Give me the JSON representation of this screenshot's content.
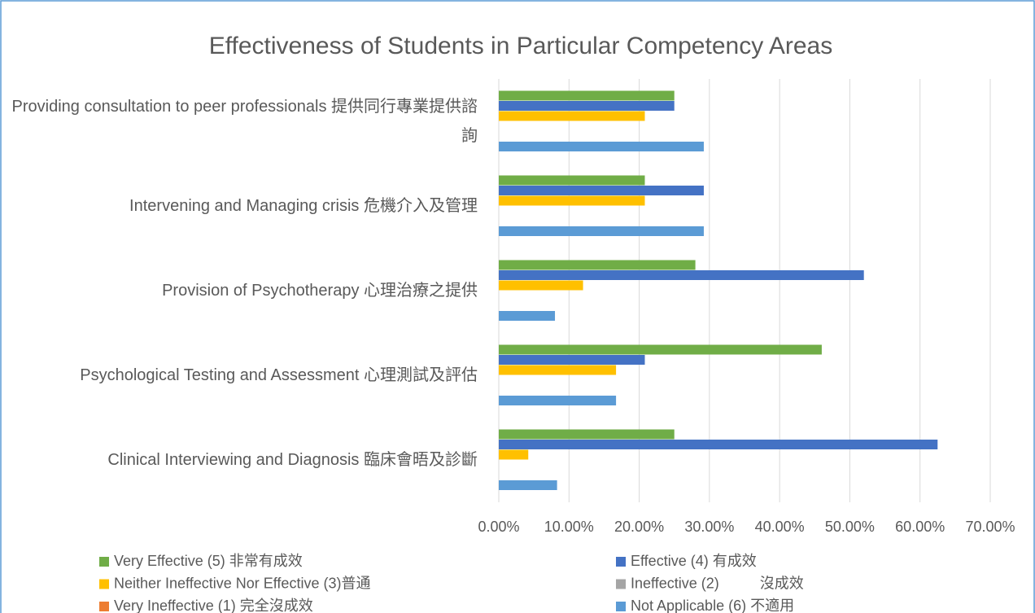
{
  "chart_data": {
    "type": "bar",
    "orientation": "horizontal",
    "title": "Effectiveness of Students in Particular Competency Areas",
    "categories": [
      "Providing consultation to peer professionals 提供同行專業提供諮詢",
      "Intervening and Managing crisis 危機介入及管理",
      "Provision of Psychotherapy 心理治療之提供",
      "Psychological Testing and Assessment 心理測試及評估",
      "Clinical Interviewing and Diagnosis 臨床會晤及診斷"
    ],
    "series": [
      {
        "name": "Very Effective (5) 非常有成效",
        "color": "#70ad47",
        "values": [
          25,
          20.8,
          28,
          46,
          25
        ]
      },
      {
        "name": "Effective (4) 有成效",
        "color": "#4472c4",
        "values": [
          25,
          29.2,
          52,
          20.8,
          62.5
        ]
      },
      {
        "name": "Neither Ineffective Nor Effective (3)普通",
        "color": "#ffc000",
        "values": [
          20.8,
          20.8,
          12,
          16.7,
          4.2
        ]
      },
      {
        "name": "Ineffective (2)          沒成效",
        "color": "#a5a5a5",
        "values": [
          0,
          0,
          0,
          0,
          0
        ]
      },
      {
        "name": "Very Ineffective (1) 完全沒成效",
        "color": "#ed7d31",
        "values": [
          0,
          0,
          0,
          0,
          0
        ]
      },
      {
        "name": "Not Applicable (6) 不適用",
        "color": "#5b9bd5",
        "values": [
          29.2,
          29.2,
          8,
          16.7,
          8.3
        ]
      }
    ],
    "xlim": [
      0,
      70
    ],
    "xticks": [
      {
        "value": 0,
        "label": "0.00%"
      },
      {
        "value": 10,
        "label": "10.00%"
      },
      {
        "value": 20,
        "label": "20.00%"
      },
      {
        "value": 30,
        "label": "30.00%"
      },
      {
        "value": 40,
        "label": "40.00%"
      },
      {
        "value": 50,
        "label": "50.00%"
      },
      {
        "value": 60,
        "label": "60.00%"
      },
      {
        "value": 70,
        "label": "70.00%"
      }
    ],
    "grid": true,
    "legend": "bottom"
  }
}
